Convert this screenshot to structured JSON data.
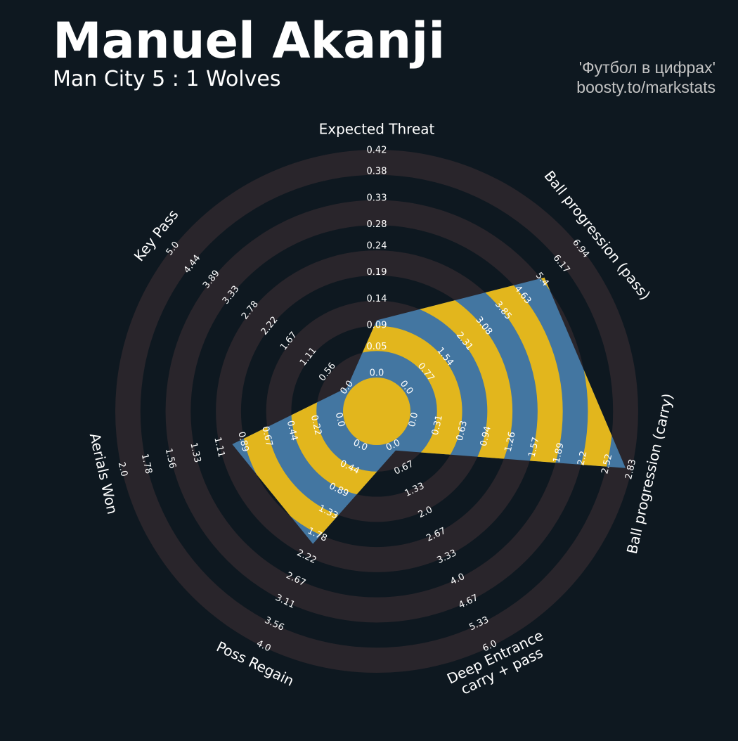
{
  "chart_data": {
    "type": "radar",
    "title": "Manuel Akanji",
    "subtitle": "Man City 5 : 1 Wolves",
    "credits": [
      "'Футбол в цифрах'",
      "boosty.to/markstats"
    ],
    "params": [
      "Expected Threat",
      "Ball progression (pass)",
      "Ball progression (carry)",
      "Deep Entrance\ncarry + pass",
      "Poss Regain",
      "Aerials Won",
      "Key Pass"
    ],
    "ranges": [
      [
        0,
        0.42
      ],
      [
        0,
        6.94
      ],
      [
        0,
        2.83
      ],
      [
        0,
        6.0
      ],
      [
        0,
        4.0
      ],
      [
        0,
        2.0
      ],
      [
        0,
        5.0
      ]
    ],
    "ticks": [
      [
        {
          "value": 0,
          "label": "0.0"
        },
        0.05,
        0.09,
        0.14,
        0.19,
        0.24,
        0.28,
        0.33,
        0.38,
        0.42
      ],
      [
        {
          "value": 0,
          "label": "0.0"
        },
        0.77,
        1.54,
        2.31,
        3.08,
        3.85,
        4.63,
        5.4,
        6.17,
        6.94
      ],
      [
        {
          "value": 0,
          "label": "0.0"
        },
        0.31,
        0.63,
        0.94,
        1.26,
        1.57,
        1.89,
        2.2,
        2.52,
        2.83
      ],
      [
        {
          "value": 0,
          "label": "0.0"
        },
        0.67,
        1.33,
        {
          "value": 2,
          "label": "2.0"
        },
        2.67,
        3.33,
        {
          "value": 4,
          "label": "4.0"
        },
        4.67,
        5.33,
        {
          "value": 6,
          "label": "6.0"
        }
      ],
      [
        {
          "value": 0,
          "label": "0.0"
        },
        0.44,
        0.89,
        1.33,
        1.78,
        2.22,
        2.67,
        3.11,
        3.56,
        {
          "value": 4,
          "label": "4.0"
        }
      ],
      [
        {
          "value": 0,
          "label": "0.0"
        },
        0.22,
        0.44,
        0.67,
        0.89,
        1.11,
        1.33,
        1.56,
        1.78,
        {
          "value": 2,
          "label": "2.0"
        }
      ],
      [
        {
          "value": 0,
          "label": "0.0"
        },
        0.56,
        1.11,
        1.67,
        2.22,
        2.78,
        3.33,
        3.89,
        4.44,
        {
          "value": 5,
          "label": "5.0"
        }
      ]
    ],
    "values": [
      0.1,
      5.5,
      2.76,
      0.15,
      1.96,
      0.99,
      0
    ],
    "color": "#4376a1",
    "alt_color": "#e2b61d",
    "ring_color": "#29252b",
    "background": "#0e1820"
  }
}
